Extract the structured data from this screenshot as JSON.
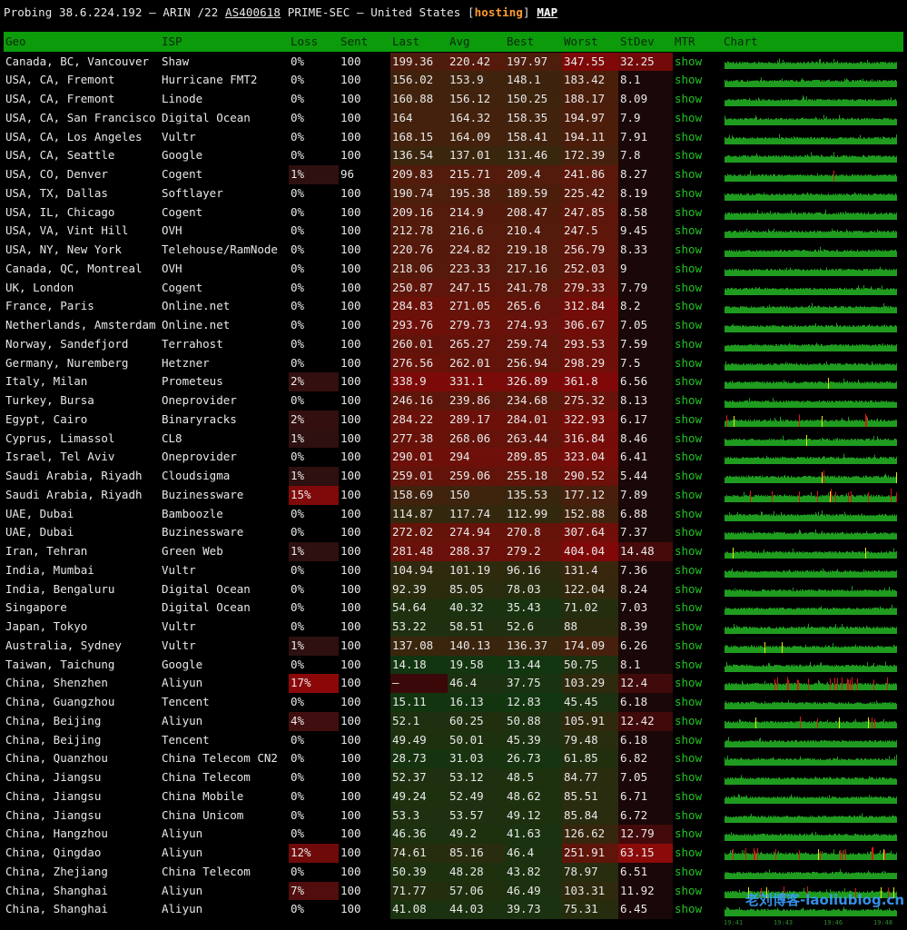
{
  "title": {
    "prefix": "Probing 38.6.224.192 – ARIN /22",
    "asn": "AS400618",
    "org": "PRIME-SEC – United States",
    "tag_open": "[",
    "tag": "hosting",
    "tag_close": "]",
    "map": "MAP"
  },
  "headers": {
    "geo": "Geo",
    "isp": "ISP",
    "loss": "Loss",
    "sent": "Sent",
    "last": "Last",
    "avg": "Avg",
    "best": "Best",
    "worst": "Worst",
    "stdev": "StDev",
    "mtr": "MTR",
    "chart": "Chart"
  },
  "rows": [
    {
      "geo": "Canada, BC, Vancouver",
      "isp": "Shaw",
      "loss": "0%",
      "sent": "100",
      "last": "199.36",
      "avg": "220.42",
      "best": "197.97",
      "worst": "347.55",
      "stdev": "32.25",
      "mtr": "show"
    },
    {
      "geo": "USA, CA, Fremont",
      "isp": "Hurricane FMT2",
      "loss": "0%",
      "sent": "100",
      "last": "156.02",
      "avg": "153.9",
      "best": "148.1",
      "worst": "183.42",
      "stdev": "8.1",
      "mtr": "show"
    },
    {
      "geo": "USA, CA, Fremont",
      "isp": "Linode",
      "loss": "0%",
      "sent": "100",
      "last": "160.88",
      "avg": "156.12",
      "best": "150.25",
      "worst": "188.17",
      "stdev": "8.09",
      "mtr": "show"
    },
    {
      "geo": "USA, CA, San Francisco",
      "isp": "Digital Ocean",
      "loss": "0%",
      "sent": "100",
      "last": "164",
      "avg": "164.32",
      "best": "158.35",
      "worst": "194.97",
      "stdev": "7.9",
      "mtr": "show"
    },
    {
      "geo": "USA, CA, Los Angeles",
      "isp": "Vultr",
      "loss": "0%",
      "sent": "100",
      "last": "168.15",
      "avg": "164.09",
      "best": "158.41",
      "worst": "194.11",
      "stdev": "7.91",
      "mtr": "show"
    },
    {
      "geo": "USA, CA, Seattle",
      "isp": "Google",
      "loss": "0%",
      "sent": "100",
      "last": "136.54",
      "avg": "137.01",
      "best": "131.46",
      "worst": "172.39",
      "stdev": "7.8",
      "mtr": "show"
    },
    {
      "geo": "USA, CO, Denver",
      "isp": "Cogent",
      "loss": "1%",
      "sent": "96",
      "last": "209.83",
      "avg": "215.71",
      "best": "209.4",
      "worst": "241.86",
      "stdev": "8.27",
      "mtr": "show"
    },
    {
      "geo": "USA, TX, Dallas",
      "isp": "Softlayer",
      "loss": "0%",
      "sent": "100",
      "last": "190.74",
      "avg": "195.38",
      "best": "189.59",
      "worst": "225.42",
      "stdev": "8.19",
      "mtr": "show"
    },
    {
      "geo": "USA, IL, Chicago",
      "isp": "Cogent",
      "loss": "0%",
      "sent": "100",
      "last": "209.16",
      "avg": "214.9",
      "best": "208.47",
      "worst": "247.85",
      "stdev": "8.58",
      "mtr": "show"
    },
    {
      "geo": "USA, VA, Vint Hill",
      "isp": "OVH",
      "loss": "0%",
      "sent": "100",
      "last": "212.78",
      "avg": "216.6",
      "best": "210.4",
      "worst": "247.5",
      "stdev": "9.45",
      "mtr": "show"
    },
    {
      "geo": "USA, NY, New York",
      "isp": "Telehouse/RamNode",
      "loss": "0%",
      "sent": "100",
      "last": "220.76",
      "avg": "224.82",
      "best": "219.18",
      "worst": "256.79",
      "stdev": "8.33",
      "mtr": "show"
    },
    {
      "geo": "Canada, QC, Montreal",
      "isp": "OVH",
      "loss": "0%",
      "sent": "100",
      "last": "218.06",
      "avg": "223.33",
      "best": "217.16",
      "worst": "252.03",
      "stdev": "9",
      "mtr": "show"
    },
    {
      "geo": "UK, London",
      "isp": "Cogent",
      "loss": "0%",
      "sent": "100",
      "last": "250.87",
      "avg": "247.15",
      "best": "241.78",
      "worst": "279.33",
      "stdev": "7.79",
      "mtr": "show"
    },
    {
      "geo": "France, Paris",
      "isp": "Online.net",
      "loss": "0%",
      "sent": "100",
      "last": "284.83",
      "avg": "271.05",
      "best": "265.6",
      "worst": "312.84",
      "stdev": "8.2",
      "mtr": "show"
    },
    {
      "geo": "Netherlands, Amsterdam",
      "isp": "Online.net",
      "loss": "0%",
      "sent": "100",
      "last": "293.76",
      "avg": "279.73",
      "best": "274.93",
      "worst": "306.67",
      "stdev": "7.05",
      "mtr": "show"
    },
    {
      "geo": "Norway, Sandefjord",
      "isp": "Terrahost",
      "loss": "0%",
      "sent": "100",
      "last": "260.01",
      "avg": "265.27",
      "best": "259.74",
      "worst": "293.53",
      "stdev": "7.59",
      "mtr": "show"
    },
    {
      "geo": "Germany, Nuremberg",
      "isp": "Hetzner",
      "loss": "0%",
      "sent": "100",
      "last": "276.56",
      "avg": "262.01",
      "best": "256.94",
      "worst": "298.29",
      "stdev": "7.5",
      "mtr": "show"
    },
    {
      "geo": "Italy, Milan",
      "isp": "Prometeus",
      "loss": "2%",
      "sent": "100",
      "last": "338.9",
      "avg": "331.1",
      "best": "326.89",
      "worst": "361.8",
      "stdev": "6.56",
      "mtr": "show"
    },
    {
      "geo": "Turkey, Bursa",
      "isp": "Oneprovider",
      "loss": "0%",
      "sent": "100",
      "last": "246.16",
      "avg": "239.86",
      "best": "234.68",
      "worst": "275.32",
      "stdev": "8.13",
      "mtr": "show"
    },
    {
      "geo": "Egypt, Cairo",
      "isp": "Binaryracks",
      "loss": "2%",
      "sent": "100",
      "last": "284.22",
      "avg": "289.17",
      "best": "284.01",
      "worst": "322.93",
      "stdev": "6.17",
      "mtr": "show"
    },
    {
      "geo": "Cyprus, Limassol",
      "isp": "CL8",
      "loss": "1%",
      "sent": "100",
      "last": "277.38",
      "avg": "268.06",
      "best": "263.44",
      "worst": "316.84",
      "stdev": "8.46",
      "mtr": "show"
    },
    {
      "geo": "Israel, Tel Aviv",
      "isp": "Oneprovider",
      "loss": "0%",
      "sent": "100",
      "last": "290.01",
      "avg": "294",
      "best": "289.85",
      "worst": "323.04",
      "stdev": "6.41",
      "mtr": "show"
    },
    {
      "geo": "Saudi Arabia, Riyadh",
      "isp": "Cloudsigma",
      "loss": "1%",
      "sent": "100",
      "last": "259.01",
      "avg": "259.06",
      "best": "255.18",
      "worst": "290.52",
      "stdev": "5.44",
      "mtr": "show"
    },
    {
      "geo": "Saudi Arabia, Riyadh",
      "isp": "Buzinessware",
      "loss": "15%",
      "sent": "100",
      "last": "158.69",
      "avg": "150",
      "best": "135.53",
      "worst": "177.12",
      "stdev": "7.89",
      "mtr": "show"
    },
    {
      "geo": "UAE, Dubai",
      "isp": "Bamboozle",
      "loss": "0%",
      "sent": "100",
      "last": "114.87",
      "avg": "117.74",
      "best": "112.99",
      "worst": "152.88",
      "stdev": "6.88",
      "mtr": "show"
    },
    {
      "geo": "UAE, Dubai",
      "isp": "Buzinessware",
      "loss": "0%",
      "sent": "100",
      "last": "272.02",
      "avg": "274.94",
      "best": "270.8",
      "worst": "307.64",
      "stdev": "7.37",
      "mtr": "show"
    },
    {
      "geo": "Iran, Tehran",
      "isp": "Green Web",
      "loss": "1%",
      "sent": "100",
      "last": "281.48",
      "avg": "288.37",
      "best": "279.2",
      "worst": "404.04",
      "stdev": "14.48",
      "mtr": "show"
    },
    {
      "geo": "India, Mumbai",
      "isp": "Vultr",
      "loss": "0%",
      "sent": "100",
      "last": "104.94",
      "avg": "101.19",
      "best": "96.16",
      "worst": "131.4",
      "stdev": "7.36",
      "mtr": "show"
    },
    {
      "geo": "India, Bengaluru",
      "isp": "Digital Ocean",
      "loss": "0%",
      "sent": "100",
      "last": "92.39",
      "avg": "85.05",
      "best": "78.03",
      "worst": "122.04",
      "stdev": "8.24",
      "mtr": "show"
    },
    {
      "geo": "Singapore",
      "isp": "Digital Ocean",
      "loss": "0%",
      "sent": "100",
      "last": "54.64",
      "avg": "40.32",
      "best": "35.43",
      "worst": "71.02",
      "stdev": "7.03",
      "mtr": "show"
    },
    {
      "geo": "Japan, Tokyo",
      "isp": "Vultr",
      "loss": "0%",
      "sent": "100",
      "last": "53.22",
      "avg": "58.51",
      "best": "52.6",
      "worst": "88",
      "stdev": "8.39",
      "mtr": "show"
    },
    {
      "geo": "Australia, Sydney",
      "isp": "Vultr",
      "loss": "1%",
      "sent": "100",
      "last": "137.08",
      "avg": "140.13",
      "best": "136.37",
      "worst": "174.09",
      "stdev": "6.26",
      "mtr": "show"
    },
    {
      "geo": "Taiwan, Taichung",
      "isp": "Google",
      "loss": "0%",
      "sent": "100",
      "last": "14.18",
      "avg": "19.58",
      "best": "13.44",
      "worst": "50.75",
      "stdev": "8.1",
      "mtr": "show"
    },
    {
      "geo": "China, Shenzhen",
      "isp": "Aliyun",
      "loss": "17%",
      "sent": "100",
      "last": "–",
      "avg": "46.4",
      "best": "37.75",
      "worst": "103.29",
      "stdev": "12.4",
      "mtr": "show"
    },
    {
      "geo": "China, Guangzhou",
      "isp": "Tencent",
      "loss": "0%",
      "sent": "100",
      "last": "15.11",
      "avg": "16.13",
      "best": "12.83",
      "worst": "45.45",
      "stdev": "6.18",
      "mtr": "show"
    },
    {
      "geo": "China, Beijing",
      "isp": "Aliyun",
      "loss": "4%",
      "sent": "100",
      "last": "52.1",
      "avg": "60.25",
      "best": "50.88",
      "worst": "105.91",
      "stdev": "12.42",
      "mtr": "show"
    },
    {
      "geo": "China, Beijing",
      "isp": "Tencent",
      "loss": "0%",
      "sent": "100",
      "last": "49.49",
      "avg": "50.01",
      "best": "45.39",
      "worst": "79.48",
      "stdev": "6.18",
      "mtr": "show"
    },
    {
      "geo": "China, Quanzhou",
      "isp": "China Telecom CN2",
      "loss": "0%",
      "sent": "100",
      "last": "28.73",
      "avg": "31.03",
      "best": "26.73",
      "worst": "61.85",
      "stdev": "6.82",
      "mtr": "show"
    },
    {
      "geo": "China, Jiangsu",
      "isp": "China Telecom",
      "loss": "0%",
      "sent": "100",
      "last": "52.37",
      "avg": "53.12",
      "best": "48.5",
      "worst": "84.77",
      "stdev": "7.05",
      "mtr": "show"
    },
    {
      "geo": "China, Jiangsu",
      "isp": "China Mobile",
      "loss": "0%",
      "sent": "100",
      "last": "49.24",
      "avg": "52.49",
      "best": "48.62",
      "worst": "85.51",
      "stdev": "6.71",
      "mtr": "show"
    },
    {
      "geo": "China, Jiangsu",
      "isp": "China Unicom",
      "loss": "0%",
      "sent": "100",
      "last": "53.3",
      "avg": "53.57",
      "best": "49.12",
      "worst": "85.84",
      "stdev": "6.72",
      "mtr": "show"
    },
    {
      "geo": "China, Hangzhou",
      "isp": "Aliyun",
      "loss": "0%",
      "sent": "100",
      "last": "46.36",
      "avg": "49.2",
      "best": "41.63",
      "worst": "126.62",
      "stdev": "12.79",
      "mtr": "show"
    },
    {
      "geo": "China, Qingdao",
      "isp": "Aliyun",
      "loss": "12%",
      "sent": "100",
      "last": "74.61",
      "avg": "85.16",
      "best": "46.4",
      "worst": "251.91",
      "stdev": "63.15",
      "mtr": "show"
    },
    {
      "geo": "China, Zhejiang",
      "isp": "China Telecom",
      "loss": "0%",
      "sent": "100",
      "last": "50.39",
      "avg": "48.28",
      "best": "43.82",
      "worst": "78.97",
      "stdev": "6.51",
      "mtr": "show"
    },
    {
      "geo": "China, Shanghai",
      "isp": "Aliyun",
      "loss": "7%",
      "sent": "100",
      "last": "71.77",
      "avg": "57.06",
      "best": "46.49",
      "worst": "103.31",
      "stdev": "11.92",
      "mtr": "show"
    },
    {
      "geo": "China, Shanghai",
      "isp": "Aliyun",
      "loss": "0%",
      "sent": "100",
      "last": "41.08",
      "avg": "44.03",
      "best": "39.73",
      "worst": "75.31",
      "stdev": "6.45",
      "mtr": "show"
    }
  ],
  "watermark": "老刘博客-laoliublog.cn",
  "chart_ticks": [
    "19:41",
    "19:43",
    "19:46",
    "19:48"
  ],
  "colors": {
    "header_bg": "#0b9b0b",
    "mtr_link": "#22c322",
    "hosting_tag": "#ff9a2e",
    "chart_ok": "#1f9c1f",
    "chart_loss": "#e01515",
    "chart_warn": "#e6e610"
  }
}
